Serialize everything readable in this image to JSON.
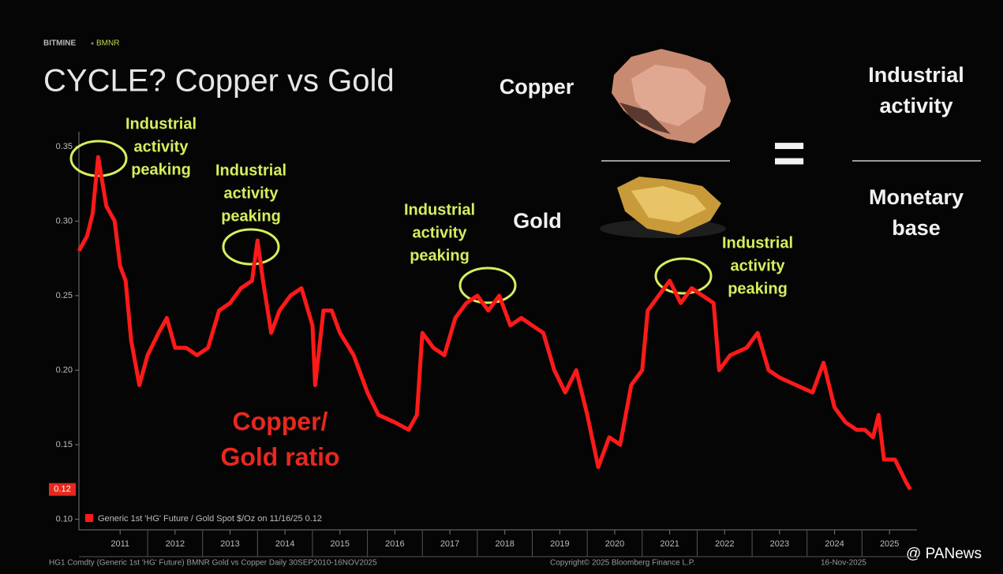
{
  "chart_data": {
    "type": "line",
    "brand": "BITMINE",
    "brand_ticker": "BMNR",
    "title": "CYCLE? Copper vs Gold",
    "x": [
      2010.75,
      2010.9,
      2011.0,
      2011.1,
      2011.25,
      2011.4,
      2011.5,
      2011.6,
      2011.7,
      2011.85,
      2012.0,
      2012.2,
      2012.35,
      2012.5,
      2012.7,
      2012.9,
      2013.1,
      2013.3,
      2013.5,
      2013.7,
      2013.9,
      2014.0,
      2014.1,
      2014.25,
      2014.4,
      2014.6,
      2014.8,
      2015.0,
      2015.05,
      2015.2,
      2015.35,
      2015.5,
      2015.75,
      2016.0,
      2016.2,
      2016.5,
      2016.75,
      2016.9,
      2017.0,
      2017.2,
      2017.4,
      2017.6,
      2017.8,
      2018.0,
      2018.2,
      2018.4,
      2018.6,
      2018.8,
      2019.0,
      2019.2,
      2019.4,
      2019.6,
      2019.8,
      2020.0,
      2020.2,
      2020.4,
      2020.6,
      2020.8,
      2021.0,
      2021.1,
      2021.3,
      2021.5,
      2021.7,
      2021.9,
      2022.1,
      2022.3,
      2022.4,
      2022.6,
      2022.9,
      2023.1,
      2023.3,
      2023.5,
      2023.8,
      2024.1,
      2024.3,
      2024.5,
      2024.7,
      2024.9,
      2025.05,
      2025.2,
      2025.3,
      2025.4,
      2025.6,
      2025.8,
      2025.88
    ],
    "series": [
      {
        "name": "Generic 1st 'HG' Future / Gold Spot $/Oz on 11/16/25 0.12",
        "color": "#ff1a1a",
        "values": [
          0.28,
          0.29,
          0.305,
          0.343,
          0.31,
          0.3,
          0.27,
          0.26,
          0.22,
          0.19,
          0.21,
          0.225,
          0.235,
          0.215,
          0.215,
          0.21,
          0.215,
          0.24,
          0.245,
          0.255,
          0.26,
          0.287,
          0.26,
          0.225,
          0.24,
          0.25,
          0.255,
          0.23,
          0.19,
          0.24,
          0.24,
          0.225,
          0.21,
          0.185,
          0.17,
          0.165,
          0.16,
          0.17,
          0.225,
          0.215,
          0.21,
          0.235,
          0.245,
          0.25,
          0.24,
          0.25,
          0.23,
          0.235,
          0.23,
          0.225,
          0.2,
          0.185,
          0.2,
          0.17,
          0.135,
          0.155,
          0.15,
          0.19,
          0.2,
          0.24,
          0.25,
          0.26,
          0.245,
          0.255,
          0.25,
          0.245,
          0.2,
          0.21,
          0.215,
          0.225,
          0.2,
          0.195,
          0.19,
          0.185,
          0.205,
          0.175,
          0.165,
          0.16,
          0.16,
          0.155,
          0.17,
          0.14,
          0.14,
          0.125,
          0.12
        ]
      }
    ],
    "xlim": [
      2010.75,
      2026.0
    ],
    "ylim": [
      0.095,
      0.36
    ],
    "xticks": [
      {
        "value": 2011.5,
        "label": "2011"
      },
      {
        "value": 2012.5,
        "label": "2012"
      },
      {
        "value": 2013.5,
        "label": "2013"
      },
      {
        "value": 2014.5,
        "label": "2014"
      },
      {
        "value": 2015.5,
        "label": "2015"
      },
      {
        "value": 2016.5,
        "label": "2016"
      },
      {
        "value": 2017.5,
        "label": "2017"
      },
      {
        "value": 2018.5,
        "label": "2018"
      },
      {
        "value": 2019.5,
        "label": "2019"
      },
      {
        "value": 2020.5,
        "label": "2020"
      },
      {
        "value": 2021.5,
        "label": "2021"
      },
      {
        "value": 2022.5,
        "label": "2022"
      },
      {
        "value": 2023.5,
        "label": "2023"
      },
      {
        "value": 2024.5,
        "label": "2024"
      },
      {
        "value": 2025.5,
        "label": "2025"
      }
    ],
    "yticks": [
      {
        "value": 0.1,
        "label": "0.10"
      },
      0.15,
      {
        "value": 0.2,
        "label": "0.20"
      },
      0.25,
      {
        "value": 0.3,
        "label": "0.30"
      },
      0.35
    ],
    "last_value": 0.12,
    "annotations": [
      {
        "lines": [
          "Industrial",
          "activity",
          "peaking"
        ]
      },
      {
        "lines": [
          "Industrial",
          "activity",
          "peaking"
        ]
      },
      {
        "lines": [
          "Industrial",
          "activity",
          "peaking"
        ]
      },
      {
        "lines": [
          "Industrial",
          "activity",
          "peaking"
        ]
      }
    ],
    "ratio_label": [
      "Copper/",
      "Gold ratio"
    ],
    "graphic": {
      "numerator": "Copper",
      "denominator": "Gold",
      "equals": "=",
      "numerator_label": [
        "Industrial",
        "activity"
      ],
      "denominator_label": [
        "Monetary",
        "base"
      ]
    },
    "footer": {
      "source": "HG1 Comdty (Generic 1st 'HG' Future) BMNR Gold vs Copper Daily 30SEP2010-16NOV2025",
      "copyright": "Copyright© 2025 Bloomberg Finance L.P.",
      "date": "16-Nov-2025"
    },
    "watermark": "@ PANews"
  }
}
